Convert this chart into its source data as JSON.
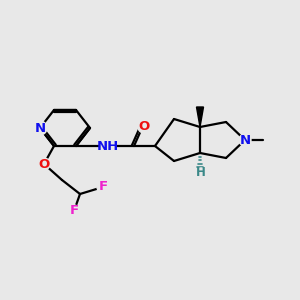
{
  "bg_color": "#e8e8e8",
  "bond_color": "#000000",
  "bond_lw": 1.6,
  "atom_colors": {
    "N": "#1010ee",
    "O": "#ee1010",
    "F": "#ee22cc",
    "H_stereo": "#3a8888",
    "C": "#000000"
  },
  "font_size": 9.5,
  "font_size_small": 8.5,
  "figsize": [
    3.0,
    3.0
  ],
  "dpi": 100,
  "xlim": [
    0,
    300
  ],
  "ylim": [
    0,
    300
  ]
}
